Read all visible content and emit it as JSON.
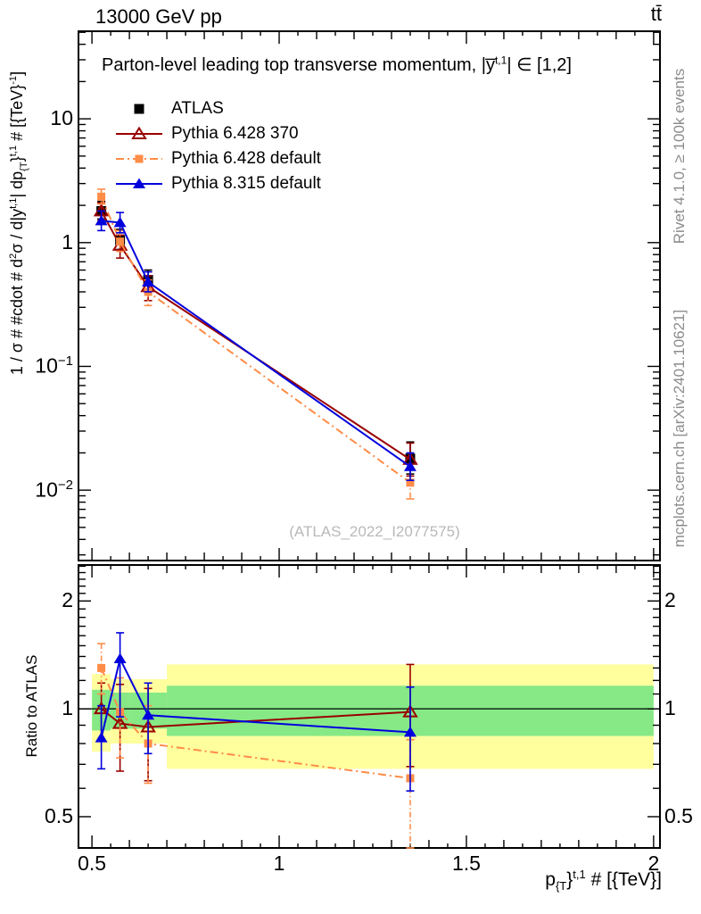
{
  "header": {
    "left": "13000 GeV pp",
    "right": "tt̄"
  },
  "sidebar_right": {
    "top": "Rivet 4.1.0, ≥ 100k events",
    "bottom": "mcplots.cern.ch [arXiv:2401.10621]"
  },
  "watermark": "(ATLAS_2022_I2077575)",
  "chart_data": {
    "type": "line",
    "title_segments": [
      {
        "t": "Parton-level leading top transverse momentum, |y̅"
      },
      {
        "t": "t,1",
        "sup": true
      },
      {
        "t": "| ∈ [1,2]"
      }
    ],
    "ylabel_segments": [
      {
        "t": "1 / σ # #cdot # d"
      },
      {
        "t": "2",
        "sup": true
      },
      {
        "t": "σ / d|y"
      },
      {
        "t": "t,1",
        "sup": true
      },
      {
        "t": "| dp"
      },
      {
        "t": "{T",
        "sub": true
      },
      {
        "t": "}"
      },
      {
        "t": "t,1",
        "sup": true
      },
      {
        "t": " # [{TeV}"
      },
      {
        "t": "-1",
        "sup": true
      },
      {
        "t": "]"
      }
    ],
    "xlabel_segments": [
      {
        "t": "p"
      },
      {
        "t": "{T",
        "sub": true
      },
      {
        "t": "}"
      },
      {
        "t": "t,1",
        "sup": true
      },
      {
        "t": " # [{TeV}]"
      }
    ],
    "ratio_ylabel": "Ratio to ATLAS",
    "x_range": [
      0.464,
      2.017
    ],
    "y_range_main": [
      0.0027,
      51
    ],
    "y_range_ratio": [
      0.409,
      2.52
    ],
    "x_ticks": [
      {
        "v": 0.5,
        "label": "0.5"
      },
      {
        "v": 1,
        "label": "1"
      },
      {
        "v": 1.5,
        "label": "1.5"
      },
      {
        "v": 2,
        "label": "2"
      }
    ],
    "y_ticks_main": [
      {
        "v": 10,
        "label": "10"
      },
      {
        "v": 1,
        "label": "1"
      },
      {
        "v": 0.1,
        "label": "10",
        "exp": "−1"
      },
      {
        "v": 0.01,
        "label": "10",
        "exp": "−2"
      }
    ],
    "y_ticks_ratio": [
      {
        "v": 2,
        "label": "2"
      },
      {
        "v": 1,
        "label": "1"
      },
      {
        "v": 0.5,
        "label": "0.5"
      }
    ],
    "bin_edges": [
      0.5,
      0.55,
      0.6,
      0.7,
      2.0
    ],
    "x_centers": [
      0.525,
      0.575,
      0.65,
      1.35
    ],
    "band_colors": {
      "yellow": "#ffff9e",
      "green": "#86e986"
    },
    "bands": [
      {
        "x0": 0.5,
        "x1": 0.55,
        "yellow": [
          0.76,
          1.25
        ],
        "green": [
          0.87,
          1.13
        ]
      },
      {
        "x0": 0.55,
        "x1": 0.6,
        "yellow": [
          0.8,
          1.21
        ],
        "green": [
          0.88,
          1.11
        ]
      },
      {
        "x0": 0.6,
        "x1": 0.7,
        "yellow": [
          0.8,
          1.21
        ],
        "green": [
          0.88,
          1.11
        ]
      },
      {
        "x0": 0.7,
        "x1": 2.0,
        "yellow": [
          0.68,
          1.33
        ],
        "green": [
          0.84,
          1.16
        ]
      }
    ],
    "series": [
      {
        "name": "ATLAS",
        "color": "#000000",
        "marker": "square",
        "line": "none",
        "values": [
          1.8,
          1.05,
          0.5,
          0.018
        ],
        "err_lo": [
          1.55,
          0.88,
          0.42,
          0.0135
        ],
        "err_hi": [
          2.15,
          1.28,
          0.6,
          0.0245
        ]
      },
      {
        "name": "Pythia 6.428 370",
        "color": "#990000",
        "marker": "triangle-open",
        "line": "solid",
        "values": [
          1.8,
          0.95,
          0.44,
          0.0177
        ],
        "err_lo": [
          1.5,
          0.75,
          0.34,
          0.013
        ],
        "err_hi": [
          2.1,
          1.15,
          0.54,
          0.024
        ],
        "ratio": [
          1.0,
          0.91,
          0.89,
          0.98
        ],
        "ratio_err_lo": [
          0.82,
          0.67,
          0.63,
          0.69
        ],
        "ratio_err_hi": [
          1.18,
          1.17,
          1.14,
          1.33
        ]
      },
      {
        "name": "Pythia 6.428 default",
        "color": "#ff8c47",
        "marker": "square-small",
        "line": "dashdot",
        "values": [
          2.35,
          1.02,
          0.4,
          0.0115
        ],
        "err_lo": [
          2.05,
          0.85,
          0.31,
          0.0085
        ],
        "err_hi": [
          2.7,
          1.25,
          0.5,
          0.015
        ],
        "ratio": [
          1.3,
          0.98,
          0.8,
          0.64
        ],
        "ratio_err_lo": [
          1.1,
          0.73,
          0.62,
          0.4
        ],
        "ratio_err_hi": [
          1.52,
          1.22,
          1.02,
          0.82
        ]
      },
      {
        "name": "Pythia 8.315 default",
        "color": "#0000dd",
        "marker": "triangle",
        "line": "solid",
        "values": [
          1.5,
          1.45,
          0.48,
          0.0155
        ],
        "err_lo": [
          1.25,
          1.2,
          0.4,
          0.012
        ],
        "err_hi": [
          1.8,
          1.75,
          0.58,
          0.02
        ],
        "ratio": [
          0.83,
          1.38,
          0.96,
          0.86
        ],
        "ratio_err_lo": [
          0.68,
          0.95,
          0.75,
          0.59
        ],
        "ratio_err_hi": [
          1.02,
          1.63,
          1.18,
          1.15
        ]
      }
    ]
  }
}
